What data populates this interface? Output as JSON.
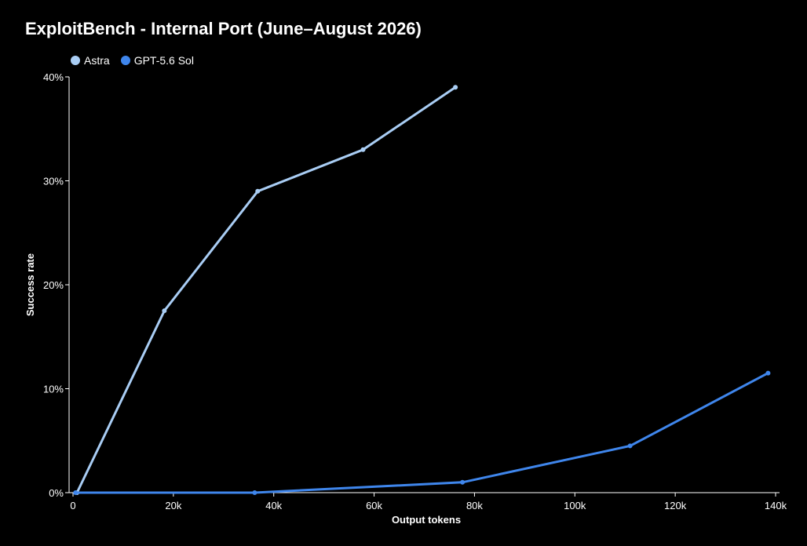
{
  "chart_data": {
    "type": "line",
    "title": "ExploitBench - Internal Port (June–August 2026)",
    "xlabel": "Output tokens",
    "ylabel": "Success rate",
    "xlim": [
      0,
      140000
    ],
    "ylim": [
      0,
      40
    ],
    "x_ticks": [
      {
        "value": 0,
        "label": "0"
      },
      {
        "value": 20000,
        "label": "20k"
      },
      {
        "value": 40000,
        "label": "40k"
      },
      {
        "value": 60000,
        "label": "60k"
      },
      {
        "value": 80000,
        "label": "80k"
      },
      {
        "value": 100000,
        "label": "100k"
      },
      {
        "value": 120000,
        "label": "120k"
      },
      {
        "value": 140000,
        "label": "140k"
      }
    ],
    "y_ticks": [
      {
        "value": 0,
        "label": "0%"
      },
      {
        "value": 10,
        "label": "10%"
      },
      {
        "value": 20,
        "label": "20%"
      },
      {
        "value": 30,
        "label": "30%"
      },
      {
        "value": 40,
        "label": "40%"
      }
    ],
    "grid": false,
    "legend_position": "top-left",
    "series": [
      {
        "name": "Astra",
        "color": "#a9cdf4",
        "x": [
          800,
          18200,
          36800,
          57800,
          76200
        ],
        "y": [
          0,
          17.5,
          29,
          33,
          39
        ]
      },
      {
        "name": "GPT-5.6 Sol",
        "color": "#3f86ec",
        "x": [
          500,
          36200,
          77600,
          111000,
          138500
        ],
        "y": [
          0,
          0,
          1,
          4.5,
          11.5
        ]
      }
    ]
  }
}
